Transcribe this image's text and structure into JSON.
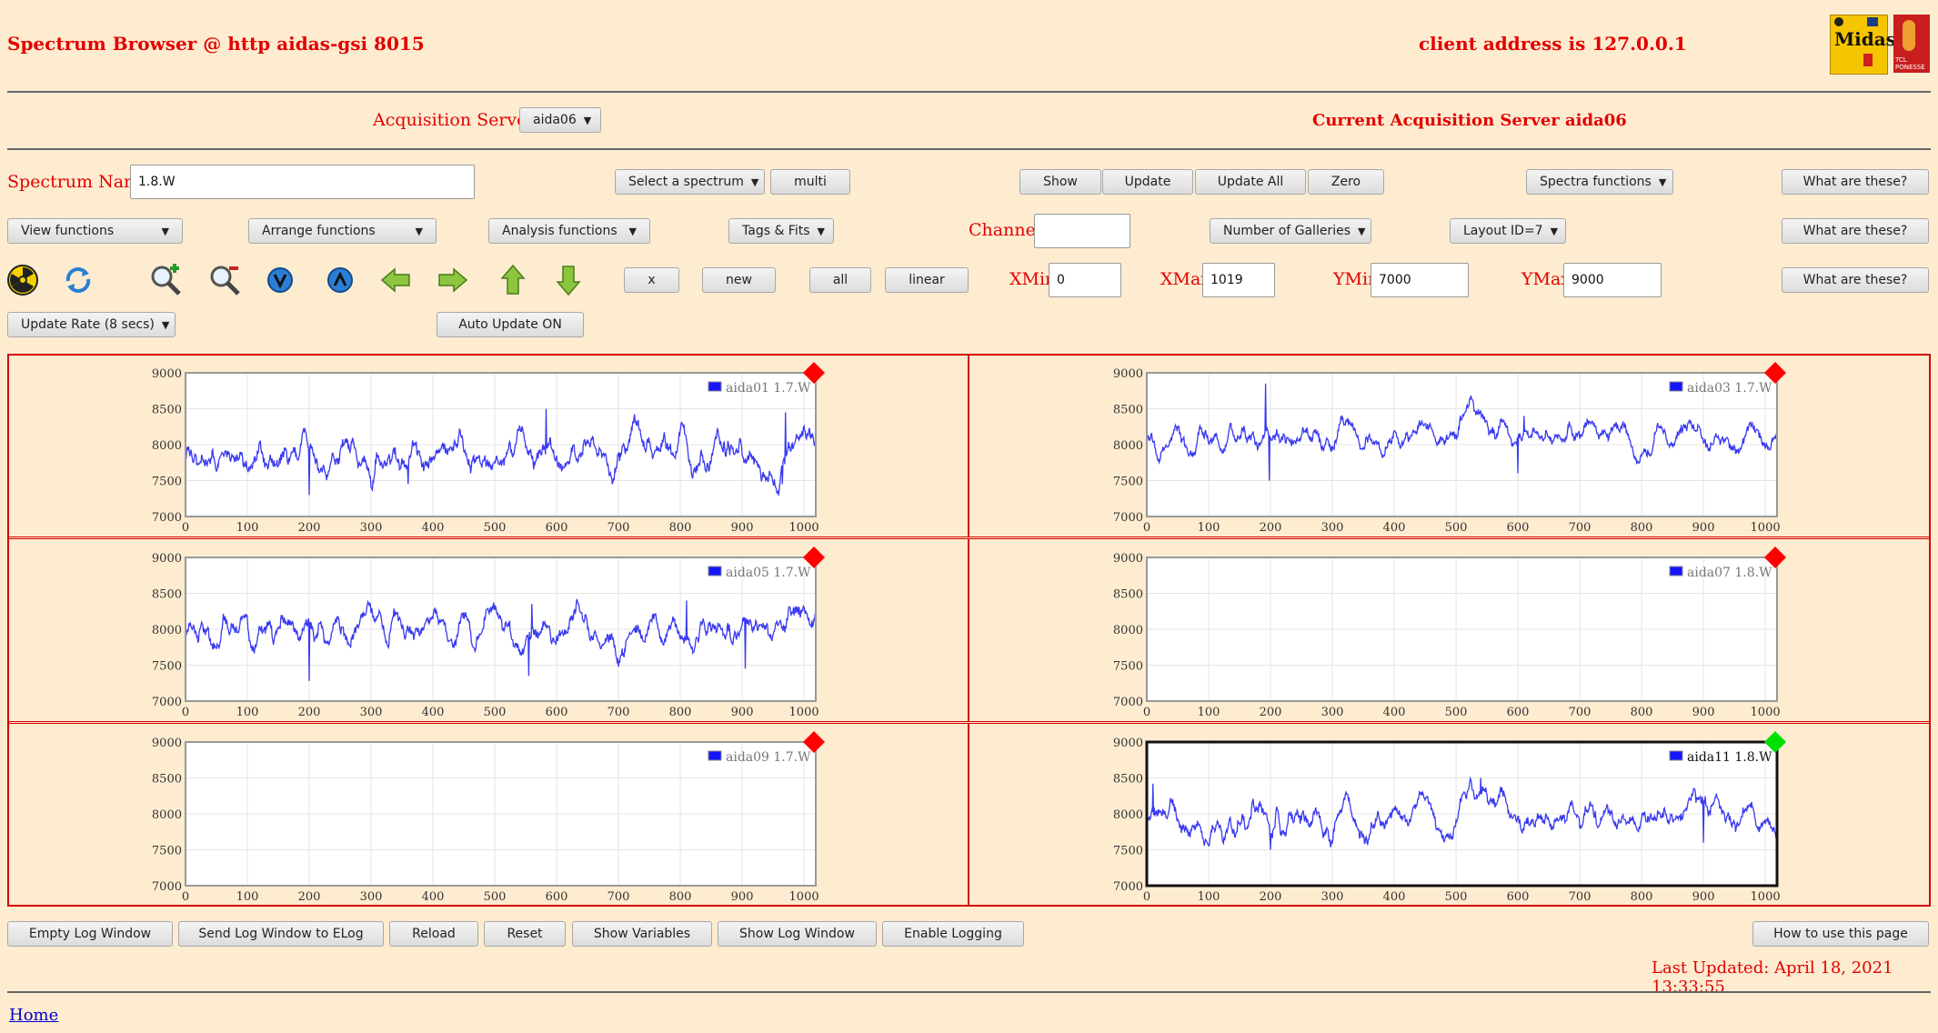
{
  "header": {
    "title": "Spectrum Browser @ http aidas-gsi 8015",
    "client_address": "client address is 127.0.0.1",
    "logo_midas_text": "Midas",
    "logo_tcl_text": "TCL PONESSE"
  },
  "servers": {
    "label": "Acquisition Servers",
    "selected": "aida06",
    "current_label": "Current Acquisition Server aida06"
  },
  "spectrum_row": {
    "name_label": "Spectrum Name:",
    "name_value": "1.8.W",
    "select_spectrum": "Select a spectrum",
    "multi": "multi",
    "show": "Show",
    "update": "Update",
    "update_all": "Update All",
    "zero": "Zero",
    "spectra_functions": "Spectra functions",
    "what": "What are these?"
  },
  "functions_row": {
    "view": "View functions",
    "arrange": "Arrange functions",
    "analysis": "Analysis functions",
    "tags": "Tags & Fits",
    "channel_label": "Channel:",
    "channel_value": "",
    "galleries": "Number of Galleries",
    "layout": "Layout ID=7",
    "what": "What are these?"
  },
  "tools_row": {
    "x": "x",
    "new": "new",
    "all": "all",
    "linear": "linear",
    "xmin_label": "XMin",
    "xmin_value": "0",
    "xmax_label": "XMax",
    "xmax_value": "1019",
    "ymin_label": "YMin",
    "ymin_value": "7000",
    "ymax_label": "YMax",
    "ymax_value": "9000",
    "what": "What are these?"
  },
  "rate_row": {
    "update_rate": "Update Rate (8 secs)",
    "auto_update": "Auto Update ON"
  },
  "colors": {
    "accent_red": "#e30000",
    "background": "#feecd0",
    "trace_blue": "#3a3af0",
    "status_red": "#ff0000",
    "status_green": "#00e000"
  },
  "chart_data": [
    {
      "type": "line",
      "legend": "aida01 1.7.W",
      "status": "red",
      "selected": false,
      "has_data": true,
      "baseline": 7850,
      "noise": 150,
      "xlim": [
        0,
        1019
      ],
      "ylim": [
        7000,
        9000
      ],
      "xticks": [
        0,
        100,
        200,
        300,
        400,
        500,
        600,
        700,
        800,
        900,
        1000
      ],
      "yticks": [
        9000,
        8500,
        8000,
        7500,
        7000
      ],
      "spikes": [
        [
          200,
          7300
        ],
        [
          360,
          7450
        ],
        [
          583,
          8500
        ],
        [
          970,
          8450
        ],
        [
          965,
          7450
        ]
      ]
    },
    {
      "type": "line",
      "legend": "aida03 1.7.W",
      "status": "red",
      "selected": false,
      "has_data": true,
      "baseline": 8100,
      "noise": 110,
      "xlim": [
        0,
        1019
      ],
      "ylim": [
        7000,
        9000
      ],
      "xticks": [
        0,
        100,
        200,
        300,
        400,
        500,
        600,
        700,
        800,
        900,
        1000
      ],
      "yticks": [
        9000,
        8500,
        8000,
        7500,
        7000
      ],
      "spikes": [
        [
          192,
          8850
        ],
        [
          198,
          7500
        ],
        [
          600,
          7600
        ],
        [
          610,
          8400
        ]
      ]
    },
    {
      "type": "line",
      "legend": "aida05 1.7.W",
      "status": "red",
      "selected": false,
      "has_data": true,
      "baseline": 7980,
      "noise": 140,
      "xlim": [
        0,
        1019
      ],
      "ylim": [
        7000,
        9000
      ],
      "xticks": [
        0,
        100,
        200,
        300,
        400,
        500,
        600,
        700,
        800,
        900,
        1000
      ],
      "yticks": [
        9000,
        8500,
        8000,
        7500,
        7000
      ],
      "spikes": [
        [
          200,
          8480
        ],
        [
          200,
          7280
        ],
        [
          555,
          7350
        ],
        [
          560,
          8350
        ],
        [
          810,
          8400
        ],
        [
          905,
          8400
        ],
        [
          905,
          7450
        ]
      ]
    },
    {
      "type": "line",
      "legend": "aida07 1.8.W",
      "status": "red",
      "selected": false,
      "has_data": false,
      "xlim": [
        0,
        1019
      ],
      "ylim": [
        7000,
        9000
      ],
      "xticks": [
        0,
        100,
        200,
        300,
        400,
        500,
        600,
        700,
        800,
        900,
        1000
      ],
      "yticks": [
        9000,
        8500,
        8000,
        7500,
        7000
      ]
    },
    {
      "type": "line",
      "legend": "aida09 1.7.W",
      "status": "red",
      "selected": false,
      "has_data": false,
      "xlim": [
        0,
        1019
      ],
      "ylim": [
        7000,
        9000
      ],
      "xticks": [
        0,
        100,
        200,
        300,
        400,
        500,
        600,
        700,
        800,
        900,
        1000
      ],
      "yticks": [
        9000,
        8500,
        8000,
        7500,
        7000
      ]
    },
    {
      "type": "line",
      "legend": "aida11 1.8.W",
      "status": "green",
      "selected": true,
      "has_data": true,
      "baseline": 7950,
      "noise": 130,
      "xlim": [
        0,
        1019
      ],
      "ylim": [
        7000,
        9000
      ],
      "xticks": [
        0,
        100,
        200,
        300,
        400,
        500,
        600,
        700,
        800,
        900,
        1000
      ],
      "yticks": [
        9000,
        8500,
        8000,
        7500,
        7000
      ],
      "spikes": [
        [
          10,
          8420
        ],
        [
          200,
          7500
        ],
        [
          540,
          8500
        ],
        [
          900,
          7600
        ]
      ]
    }
  ],
  "bottom": {
    "empty_log": "Empty Log Window",
    "send_log": "Send Log Window to ELog",
    "reload": "Reload",
    "reset": "Reset",
    "show_vars": "Show Variables",
    "show_log": "Show Log Window",
    "enable_logging": "Enable Logging",
    "howto": "How to use this page",
    "last_updated": "Last Updated: April 18, 2021 13:33:55",
    "home": "Home"
  }
}
